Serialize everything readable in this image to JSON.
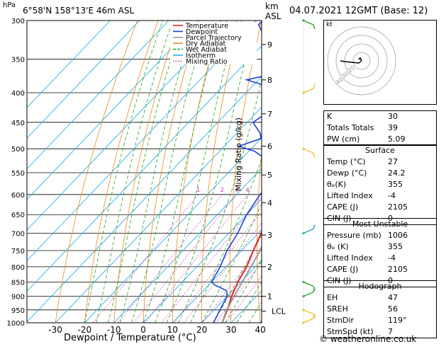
{
  "header": {
    "location": "6°58'N 158°13'E 46m ASL",
    "datetime": "04.07.2021 12GMT (Base: 12)",
    "pressure_unit": "hPa",
    "height_unit_top": "km",
    "height_unit_bottom": "ASL"
  },
  "footer": {
    "copyright": "© weatheronline.co.uk"
  },
  "chart_data": {
    "type": "line",
    "xlabel": "Dewpoint / Temperature (°C)",
    "ylabel": "hPa",
    "right_label": "Mixing Ratio (g/kg)",
    "x_ticks": [
      -30,
      -20,
      -10,
      0,
      10,
      20,
      30,
      40
    ],
    "pressure_levels": [
      300,
      350,
      400,
      450,
      500,
      550,
      600,
      650,
      700,
      750,
      800,
      850,
      900,
      950,
      1000
    ],
    "km_ticks": [
      {
        "label": "1",
        "p": 900
      },
      {
        "label": "2",
        "p": 800
      },
      {
        "label": "3",
        "p": 705
      },
      {
        "label": "4",
        "p": 620
      },
      {
        "label": "5",
        "p": 555
      },
      {
        "label": "6",
        "p": 495
      },
      {
        "label": "7",
        "p": 435
      },
      {
        "label": "8",
        "p": 380
      },
      {
        "label": "9",
        "p": 330
      }
    ],
    "lcl": {
      "label": "LCL",
      "p": 955
    },
    "mixing_ratio_labels": [
      "1",
      "2",
      "3",
      "4",
      "6",
      "8",
      "10",
      "15",
      "20",
      "25"
    ],
    "legend": [
      "Temperature",
      "Dewpoint",
      "Parcel Trajectory",
      "Dry Adiabat",
      "Wet Adiabat",
      "Isotherm",
      "Mixing Ratio"
    ],
    "colors": {
      "temperature": "#e8202a",
      "dewpoint": "#1a3fe0",
      "parcel": "#9a9a9a",
      "dry_adiabat": "#e88a18",
      "wet_adiabat": "#2aa02a",
      "isotherm": "#2ab0e8",
      "mixing_ratio": "#d020b0"
    },
    "series": [
      {
        "name": "Temperature",
        "points": [
          [
            1000,
            27
          ],
          [
            950,
            24.5
          ],
          [
            900,
            21.5
          ],
          [
            850,
            19
          ],
          [
            800,
            17
          ],
          [
            750,
            14
          ],
          [
            700,
            11
          ],
          [
            650,
            7.5
          ],
          [
            600,
            4
          ],
          [
            550,
            0
          ],
          [
            500,
            -4
          ],
          [
            450,
            -9
          ],
          [
            400,
            -15
          ],
          [
            350,
            -22
          ],
          [
            300,
            -31
          ]
        ]
      },
      {
        "name": "Dewpoint",
        "points": [
          [
            1000,
            24
          ],
          [
            950,
            22
          ],
          [
            900,
            20
          ],
          [
            880,
            18
          ],
          [
            860,
            12
          ],
          [
            850,
            10
          ],
          [
            800,
            8
          ],
          [
            750,
            5
          ],
          [
            700,
            3
          ],
          [
            650,
            0
          ],
          [
            600,
            -2
          ],
          [
            550,
            -3
          ],
          [
            540,
            -8
          ],
          [
            520,
            -12
          ],
          [
            505,
            -18
          ],
          [
            495,
            -25
          ],
          [
            480,
            -20
          ],
          [
            470,
            -22
          ],
          [
            450,
            -28
          ],
          [
            430,
            -26
          ],
          [
            410,
            -32
          ],
          [
            395,
            -30
          ],
          [
            380,
            -44
          ],
          [
            370,
            -36
          ],
          [
            355,
            -38
          ],
          [
            340,
            -48
          ],
          [
            320,
            -52
          ],
          [
            305,
            -58
          ],
          [
            300,
            -58
          ]
        ]
      },
      {
        "name": "Parcel Trajectory",
        "points": [
          [
            1000,
            27
          ],
          [
            955,
            24.5
          ],
          [
            900,
            22.3
          ],
          [
            850,
            20.5
          ],
          [
            800,
            18.5
          ],
          [
            750,
            16.3
          ],
          [
            700,
            13.8
          ],
          [
            650,
            11
          ],
          [
            600,
            7.8
          ],
          [
            550,
            4
          ],
          [
            500,
            -0.5
          ],
          [
            450,
            -5.5
          ],
          [
            400,
            -11.5
          ],
          [
            350,
            -18.5
          ],
          [
            300,
            -27.5
          ]
        ]
      }
    ],
    "hodograph_rings": [
      "40",
      "30",
      "20"
    ],
    "wind_barbs_p": [
      300,
      400,
      500,
      700,
      850,
      900,
      950,
      1000
    ],
    "wind_barb_colors": [
      "#22a022",
      "#e8c020",
      "#e8c020",
      "#1aa0b0",
      "#22a022",
      "#22a022",
      "#e8c020",
      "#e8c020"
    ]
  },
  "hodograph": {
    "label": "kt"
  },
  "indices": {
    "rows": [
      {
        "label": "K",
        "value": "30"
      },
      {
        "label": "Totals Totals",
        "value": "39"
      },
      {
        "label": "PW (cm)",
        "value": "5.09"
      }
    ]
  },
  "surface": {
    "title": "Surface",
    "rows": [
      {
        "label": "Temp (°C)",
        "value": "27"
      },
      {
        "label": "Dewp (°C)",
        "value": "24.2"
      },
      {
        "label": "θₑ(K)",
        "value": "355"
      },
      {
        "label": "Lifted Index",
        "value": "-4"
      },
      {
        "label": "CAPE (J)",
        "value": "2105"
      },
      {
        "label": "CIN (J)",
        "value": "0"
      }
    ]
  },
  "most_unstable": {
    "title": "Most Unstable",
    "rows": [
      {
        "label": "Pressure (mb)",
        "value": "1006"
      },
      {
        "label": "θₑ (K)",
        "value": "355"
      },
      {
        "label": "Lifted Index",
        "value": "-4"
      },
      {
        "label": "CAPE (J)",
        "value": "2105"
      },
      {
        "label": "CIN (J)",
        "value": "0"
      }
    ]
  },
  "hodograph_table": {
    "title": "Hodograph",
    "rows": [
      {
        "label": "EH",
        "value": "47"
      },
      {
        "label": "SREH",
        "value": "56"
      },
      {
        "label": "StmDir",
        "value": "119°"
      },
      {
        "label": "StmSpd (kt)",
        "value": "7"
      }
    ]
  }
}
